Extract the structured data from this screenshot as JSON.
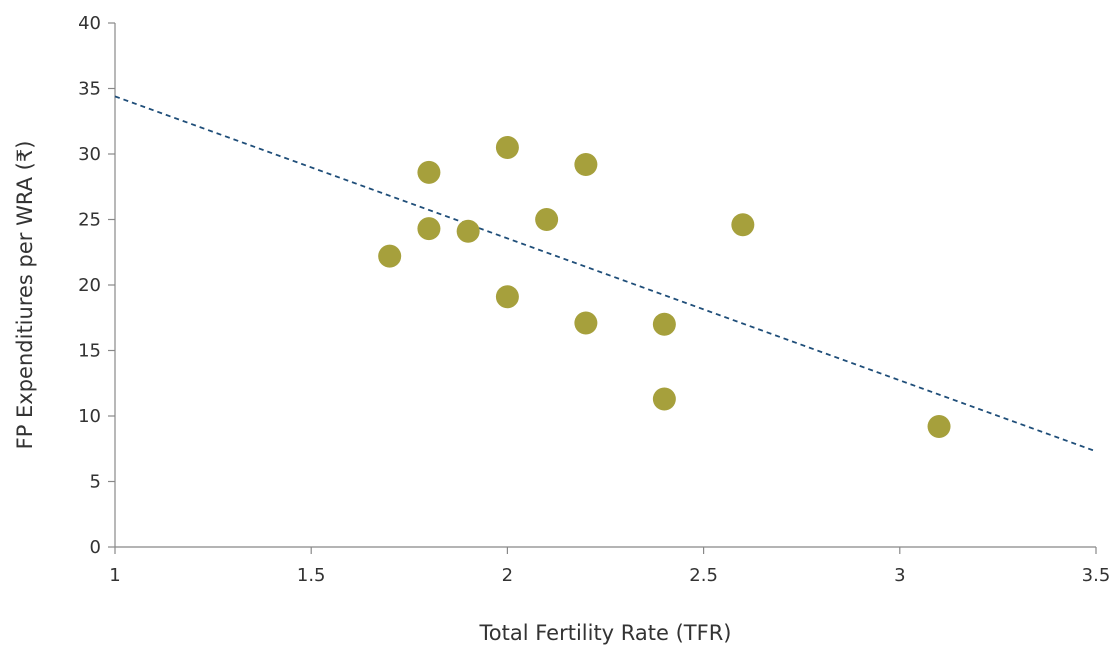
{
  "chart_data": {
    "type": "scatter",
    "xlabel": "Total Fertility Rate (TFR)",
    "ylabel": "FP Expenditiures per WRA (₹)",
    "xlim": [
      1,
      3.5
    ],
    "ylim": [
      0,
      40
    ],
    "xticks": [
      1,
      1.5,
      2,
      2.5,
      3,
      3.5
    ],
    "yticks": [
      0,
      5,
      10,
      15,
      20,
      25,
      30,
      35,
      40
    ],
    "xtick_labels": [
      "1",
      "1.5",
      "2",
      "2.5",
      "3",
      "3.5"
    ],
    "ytick_labels": [
      "0",
      "5",
      "10",
      "15",
      "20",
      "25",
      "30",
      "35",
      "40"
    ],
    "grid": false,
    "legend": "none",
    "series": [
      {
        "color": "#a6a03c",
        "points": [
          {
            "x": 1.7,
            "y": 22.2
          },
          {
            "x": 1.8,
            "y": 28.6
          },
          {
            "x": 1.8,
            "y": 24.3
          },
          {
            "x": 1.9,
            "y": 24.1
          },
          {
            "x": 2.0,
            "y": 30.5
          },
          {
            "x": 2.0,
            "y": 19.1
          },
          {
            "x": 2.1,
            "y": 25.0
          },
          {
            "x": 2.2,
            "y": 29.2
          },
          {
            "x": 2.2,
            "y": 17.1
          },
          {
            "x": 2.4,
            "y": 17.0
          },
          {
            "x": 2.4,
            "y": 11.3
          },
          {
            "x": 2.6,
            "y": 24.6
          },
          {
            "x": 3.1,
            "y": 9.2
          }
        ]
      }
    ],
    "trendline": {
      "type": "linear",
      "style": "dashed",
      "color": "#1f4e79",
      "points": [
        {
          "x": 1,
          "y": 34.4
        },
        {
          "x": 3.5,
          "y": 7.3
        }
      ]
    }
  }
}
